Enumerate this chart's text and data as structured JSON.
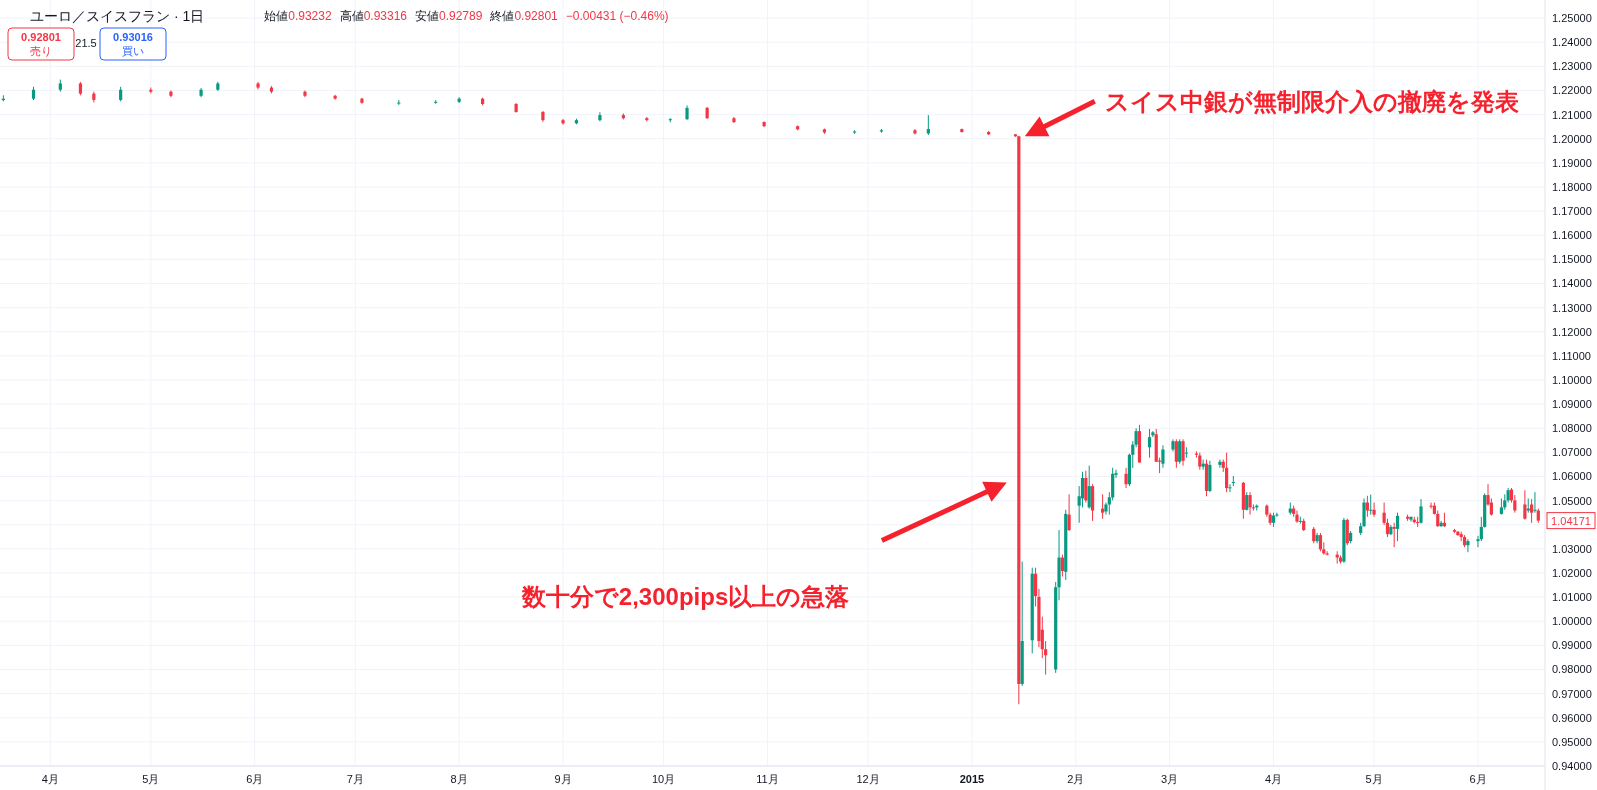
{
  "chart_data": {
    "type": "candlestick",
    "title": "ユーロ／スイスフラン · 1日",
    "grid": true,
    "xlim": [
      "2014-03-17",
      "2015-06-21"
    ],
    "xticks": [
      {
        "value": "2014-04-01",
        "label": "4月"
      },
      {
        "value": "2014-05-01",
        "label": "5月"
      },
      {
        "value": "2014-06-01",
        "label": "6月"
      },
      {
        "value": "2014-07-01",
        "label": "7月"
      },
      {
        "value": "2014-08-01",
        "label": "8月"
      },
      {
        "value": "2014-09-01",
        "label": "9月"
      },
      {
        "value": "2014-10-01",
        "label": "10月"
      },
      {
        "value": "2014-11-01",
        "label": "11月"
      },
      {
        "value": "2014-12-01",
        "label": "12月"
      },
      {
        "value": "2015-01-01",
        "label": "2015"
      },
      {
        "value": "2015-02-01",
        "label": "2月"
      },
      {
        "value": "2015-03-01",
        "label": "3月"
      },
      {
        "value": "2015-04-01",
        "label": "4月"
      },
      {
        "value": "2015-05-01",
        "label": "5月"
      },
      {
        "value": "2015-06-01",
        "label": "6月"
      }
    ],
    "ylim": [
      0.94,
      1.2575
    ],
    "yticks": [
      {
        "value": 0.94,
        "label": "0.94000"
      },
      {
        "value": 0.95,
        "label": "0.95000"
      },
      {
        "value": 0.96,
        "label": "0.96000"
      },
      {
        "value": 0.97,
        "label": "0.97000"
      },
      {
        "value": 0.98,
        "label": "0.98000"
      },
      {
        "value": 0.99,
        "label": "0.99000"
      },
      {
        "value": 1.0,
        "label": "1.00000"
      },
      {
        "value": 1.01,
        "label": "1.01000"
      },
      {
        "value": 1.02,
        "label": "1.02000"
      },
      {
        "value": 1.03,
        "label": "1.03000"
      },
      {
        "value": 1.04,
        "label": null
      },
      {
        "value": 1.05,
        "label": "1.05000"
      },
      {
        "value": 1.06,
        "label": "1.06000"
      },
      {
        "value": 1.07,
        "label": "1.07000"
      },
      {
        "value": 1.08,
        "label": "1.08000"
      },
      {
        "value": 1.09,
        "label": "1.09000"
      },
      {
        "value": 1.1,
        "label": "1.10000"
      },
      {
        "value": 1.11,
        "label": "1.11000"
      },
      {
        "value": 1.12,
        "label": "1.12000"
      },
      {
        "value": 1.13,
        "label": "1.13000"
      },
      {
        "value": 1.14,
        "label": "1.14000"
      },
      {
        "value": 1.15,
        "label": "1.15000"
      },
      {
        "value": 1.16,
        "label": "1.16000"
      },
      {
        "value": 1.17,
        "label": "1.17000"
      },
      {
        "value": 1.18,
        "label": "1.18000"
      },
      {
        "value": 1.19,
        "label": "1.19000"
      },
      {
        "value": 1.2,
        "label": "1.20000"
      },
      {
        "value": 1.21,
        "label": "1.21000"
      },
      {
        "value": 1.22,
        "label": "1.22000"
      },
      {
        "value": 1.23,
        "label": "1.23000"
      },
      {
        "value": 1.24,
        "label": "1.24000"
      },
      {
        "value": 1.25,
        "label": "1.25000"
      }
    ],
    "x": [
      "2014-03-18",
      "2014-03-27",
      "2014-04-04",
      "2014-04-10",
      "2014-04-14",
      "2014-04-22",
      "2014-05-01",
      "2014-05-07",
      "2014-05-16",
      "2014-05-21",
      "2014-06-02",
      "2014-06-06",
      "2014-06-16",
      "2014-06-25",
      "2014-07-03",
      "2014-07-14",
      "2014-07-25",
      "2014-08-01",
      "2014-08-08",
      "2014-08-18",
      "2014-08-26",
      "2014-09-01",
      "2014-09-05",
      "2014-09-12",
      "2014-09-19",
      "2014-09-26",
      "2014-10-03",
      "2014-10-08",
      "2014-10-14",
      "2014-10-22",
      "2014-10-31",
      "2014-11-10",
      "2014-11-18",
      "2014-11-27",
      "2014-12-05",
      "2014-12-15",
      "2014-12-19",
      "2014-12-29",
      "2015-01-06",
      "2015-01-14",
      "2015-01-15",
      "2015-01-16",
      "2015-01-19",
      "2015-01-20",
      "2015-01-21",
      "2015-01-22",
      "2015-01-23",
      "2015-01-26",
      "2015-01-27",
      "2015-01-28",
      "2015-01-29",
      "2015-01-30",
      "2015-02-02",
      "2015-02-03",
      "2015-02-04",
      "2015-02-05",
      "2015-02-06",
      "2015-02-09",
      "2015-02-10",
      "2015-02-11",
      "2015-02-12",
      "2015-02-13",
      "2015-02-16",
      "2015-02-17",
      "2015-02-18",
      "2015-02-19",
      "2015-02-20",
      "2015-02-23",
      "2015-02-24",
      "2015-02-25",
      "2015-02-26",
      "2015-02-27",
      "2015-03-02",
      "2015-03-03",
      "2015-03-04",
      "2015-03-05",
      "2015-03-06",
      "2015-03-09",
      "2015-03-10",
      "2015-03-11",
      "2015-03-12",
      "2015-03-13",
      "2015-03-16",
      "2015-03-17",
      "2015-03-18",
      "2015-03-19",
      "2015-03-20",
      "2015-03-23",
      "2015-03-24",
      "2015-03-25",
      "2015-03-26",
      "2015-03-27",
      "2015-03-30",
      "2015-03-31",
      "2015-04-01",
      "2015-04-02",
      "2015-04-06",
      "2015-04-07",
      "2015-04-08",
      "2015-04-09",
      "2015-04-10",
      "2015-04-13",
      "2015-04-14",
      "2015-04-15",
      "2015-04-16",
      "2015-04-17",
      "2015-04-20",
      "2015-04-21",
      "2015-04-22",
      "2015-04-23",
      "2015-04-24",
      "2015-04-27",
      "2015-04-28",
      "2015-04-29",
      "2015-04-30",
      "2015-05-01",
      "2015-05-04",
      "2015-05-05",
      "2015-05-06",
      "2015-05-07",
      "2015-05-08",
      "2015-05-11",
      "2015-05-12",
      "2015-05-13",
      "2015-05-14",
      "2015-05-15",
      "2015-05-18",
      "2015-05-19",
      "2015-05-20",
      "2015-05-21",
      "2015-05-22",
      "2015-05-25",
      "2015-05-26",
      "2015-05-27",
      "2015-05-28",
      "2015-05-29",
      "2015-06-01",
      "2015-06-02",
      "2015-06-03",
      "2015-06-04",
      "2015-06-05",
      "2015-06-08",
      "2015-06-09",
      "2015-06-10",
      "2015-06-11",
      "2015-06-12",
      "2015-06-15",
      "2015-06-16",
      "2015-06-17",
      "2015-06-18",
      "2015-06-19"
    ],
    "ohlc": [
      [
        1.216,
        1.218,
        1.2155,
        1.2166
      ],
      [
        1.2166,
        1.2215,
        1.216,
        1.2203
      ],
      [
        1.2203,
        1.2245,
        1.2195,
        1.2229
      ],
      [
        1.2229,
        1.2235,
        1.218,
        1.2187
      ],
      [
        1.2187,
        1.2195,
        1.215,
        1.2161
      ],
      [
        1.2161,
        1.2215,
        1.2155,
        1.2203
      ],
      [
        1.2203,
        1.2212,
        1.2188,
        1.2195
      ],
      [
        1.2195,
        1.22,
        1.2172,
        1.2178
      ],
      [
        1.2178,
        1.221,
        1.2172,
        1.2203
      ],
      [
        1.2203,
        1.2236,
        1.2198,
        1.2229
      ],
      [
        1.2229,
        1.2235,
        1.2205,
        1.2212
      ],
      [
        1.2212,
        1.2218,
        1.2188,
        1.2195
      ],
      [
        1.2195,
        1.22,
        1.2172,
        1.2178
      ],
      [
        1.2178,
        1.2182,
        1.2162,
        1.2166
      ],
      [
        1.2166,
        1.217,
        1.2145,
        1.2149
      ],
      [
        1.2149,
        1.216,
        1.214,
        1.215
      ],
      [
        1.215,
        1.216,
        1.2145,
        1.2153
      ],
      [
        1.2153,
        1.2172,
        1.2148,
        1.2166
      ],
      [
        1.2166,
        1.217,
        1.2138,
        1.2144
      ],
      [
        1.2144,
        1.2148,
        1.2108,
        1.2111
      ],
      [
        1.2111,
        1.2115,
        1.207,
        1.2077
      ],
      [
        1.2077,
        1.2082,
        1.2058,
        1.2064
      ],
      [
        1.2064,
        1.2083,
        1.206,
        1.2077
      ],
      [
        1.2077,
        1.211,
        1.2072,
        1.2098
      ],
      [
        1.2098,
        1.2105,
        1.208,
        1.2085
      ],
      [
        1.2085,
        1.209,
        1.2072,
        1.2077
      ],
      [
        1.2077,
        1.2085,
        1.2068,
        1.2081
      ],
      [
        1.2081,
        1.2138,
        1.2078,
        1.2128
      ],
      [
        1.2128,
        1.2132,
        1.2082,
        1.2085
      ],
      [
        1.2085,
        1.209,
        1.2065,
        1.2069
      ],
      [
        1.2069,
        1.2072,
        1.2048,
        1.2052
      ],
      [
        1.2052,
        1.2055,
        1.2035,
        1.2039
      ],
      [
        1.2039,
        1.2042,
        1.202,
        1.2026
      ],
      [
        1.2026,
        1.2035,
        1.202,
        1.203
      ],
      [
        1.203,
        1.204,
        1.2025,
        1.2035
      ],
      [
        1.2035,
        1.204,
        1.2018,
        1.2022
      ],
      [
        1.2022,
        1.2098,
        1.2015,
        1.204
      ],
      [
        1.204,
        1.2042,
        1.2025,
        1.2028
      ],
      [
        1.2028,
        1.2032,
        1.2015,
        1.2018
      ],
      [
        1.2018,
        1.202,
        1.2008,
        1.201
      ],
      [
        1.201,
        1.2012,
        0.9656,
        0.974
      ],
      [
        0.974,
        1.0247,
        0.9732,
        0.9918
      ],
      [
        0.9921,
        1.0222,
        0.9867,
        1.0197
      ],
      [
        1.0197,
        1.0222,
        1.0061,
        1.0104
      ],
      [
        1.0101,
        1.0134,
        0.9892,
        0.9918
      ],
      [
        0.9965,
        1.0019,
        0.9847,
        0.9884
      ],
      [
        0.9884,
        0.9918,
        0.9779,
        0.9859
      ],
      [
        0.98,
        1.0163,
        0.9786,
        1.0141
      ],
      [
        1.0141,
        1.0378,
        1.0087,
        1.0264
      ],
      [
        1.0264,
        1.0276,
        1.0185,
        1.0208
      ],
      [
        1.0205,
        1.0462,
        1.0171,
        1.0445
      ],
      [
        1.0442,
        1.0526,
        1.0374,
        1.0378
      ],
      [
        1.0479,
        1.056,
        1.0408,
        1.0518
      ],
      [
        1.0509,
        1.0619,
        1.0472,
        1.0594
      ],
      [
        1.0594,
        1.0624,
        1.0492,
        1.0501
      ],
      [
        1.0472,
        1.0645,
        1.0467,
        1.056
      ],
      [
        1.056,
        1.0568,
        1.0416,
        1.0459
      ],
      [
        1.0467,
        1.0526,
        1.0425,
        1.045
      ],
      [
        1.0455,
        1.0492,
        1.0442,
        1.0484
      ],
      [
        1.0484,
        1.0535,
        1.0442,
        1.0514
      ],
      [
        1.0513,
        1.0636,
        1.0501,
        1.0611
      ],
      [
        1.0607,
        1.0628,
        1.0594,
        1.0614
      ],
      [
        1.0611,
        1.0636,
        1.0552,
        1.0568
      ],
      [
        1.0568,
        1.0695,
        1.056,
        1.069
      ],
      [
        1.069,
        1.0746,
        1.0636,
        1.0732
      ],
      [
        1.0732,
        1.08,
        1.0721,
        1.0788
      ],
      [
        1.0788,
        1.0814,
        1.0658,
        1.0658
      ],
      [
        1.0721,
        1.0797,
        1.0678,
        1.0763
      ],
      [
        1.0771,
        1.0788,
        1.0763,
        1.0783
      ],
      [
        1.0775,
        1.0797,
        1.0661,
        1.0661
      ],
      [
        1.0666,
        1.0678,
        1.0614,
        1.0661
      ],
      [
        1.0653,
        1.0729,
        1.0636,
        1.0712
      ],
      [
        1.0712,
        1.0754,
        1.0704,
        1.0746
      ],
      [
        1.0746,
        1.0754,
        1.0636,
        1.0661
      ],
      [
        1.0661,
        1.0754,
        1.0653,
        1.0746
      ],
      [
        1.0746,
        1.0754,
        1.0645,
        1.0665
      ],
      [
        1.0695,
        1.0721,
        1.0678,
        1.0699
      ],
      [
        1.0695,
        1.0704,
        1.0678,
        1.069
      ],
      [
        1.0687,
        1.0699,
        1.0628,
        1.0641
      ],
      [
        1.0641,
        1.067,
        1.0628,
        1.0653
      ],
      [
        1.0653,
        1.067,
        1.0518,
        1.054
      ],
      [
        1.054,
        1.0665,
        1.0535,
        1.0648
      ],
      [
        1.0648,
        1.067,
        1.0636,
        1.0661
      ],
      [
        1.0661,
        1.067,
        1.0619,
        1.0636
      ],
      [
        1.0636,
        1.0699,
        1.0535,
        1.0552
      ],
      [
        1.0552,
        1.0568,
        1.0535,
        1.0555
      ],
      [
        1.0574,
        1.0602,
        1.056,
        1.0577
      ],
      [
        1.0574,
        1.0577,
        1.0425,
        1.0462
      ],
      [
        1.0462,
        1.0535,
        1.0459,
        1.0523
      ],
      [
        1.0523,
        1.0535,
        1.0442,
        1.0472
      ],
      [
        1.0472,
        1.0484,
        1.0459,
        1.047
      ],
      [
        1.0472,
        1.0484,
        1.0459,
        1.0479
      ],
      [
        1.0479,
        1.0484,
        1.0433,
        1.0442
      ],
      [
        1.0442,
        1.045,
        1.0399,
        1.0408
      ],
      [
        1.0408,
        1.045,
        1.0391,
        1.0438
      ],
      [
        1.0438,
        1.045,
        1.0433,
        1.0442
      ],
      [
        1.045,
        1.0492,
        1.0442,
        1.0467
      ],
      [
        1.0467,
        1.0479,
        1.0433,
        1.0445
      ],
      [
        1.0442,
        1.0459,
        1.0408,
        1.0413
      ],
      [
        1.0413,
        1.0433,
        1.0405,
        1.0416
      ],
      [
        1.0416,
        1.0425,
        1.0374,
        1.0378
      ],
      [
        1.0383,
        1.0391,
        1.0323,
        1.0332
      ],
      [
        1.0332,
        1.0366,
        1.0323,
        1.0357
      ],
      [
        1.0357,
        1.0366,
        1.029,
        1.0298
      ],
      [
        1.0298,
        1.0327,
        1.0276,
        1.0281
      ],
      [
        1.0281,
        1.029,
        1.0273,
        1.0276
      ],
      [
        1.0276,
        1.029,
        1.0239,
        1.0264
      ],
      [
        1.0264,
        1.0273,
        1.0239,
        1.0247
      ],
      [
        1.0247,
        1.0428,
        1.0242,
        1.042
      ],
      [
        1.042,
        1.0425,
        1.0315,
        1.0323
      ],
      [
        1.0332,
        1.0374,
        1.0323,
        1.0366
      ],
      [
        1.0366,
        1.0408,
        1.0357,
        1.0394
      ],
      [
        1.0394,
        1.0509,
        1.0391,
        1.0492
      ],
      [
        1.0492,
        1.052,
        1.0433,
        1.0459
      ],
      [
        1.0459,
        1.0525,
        1.0442,
        1.0462
      ],
      [
        1.0462,
        1.0492,
        1.0433,
        1.0442
      ],
      [
        1.045,
        1.0492,
        1.0399,
        1.0408
      ],
      [
        1.0408,
        1.0425,
        1.0349,
        1.0361
      ],
      [
        1.0361,
        1.0399,
        1.0357,
        1.0391
      ],
      [
        1.0391,
        1.0408,
        1.0307,
        1.0383
      ],
      [
        1.0383,
        1.045,
        1.0332,
        1.0437
      ],
      [
        1.0433,
        1.0442,
        1.0416,
        1.0425
      ],
      [
        1.0421,
        1.0433,
        1.0413,
        1.0433
      ],
      [
        1.0421,
        1.0433,
        1.0405,
        1.0411
      ],
      [
        1.0411,
        1.0433,
        1.0391,
        1.0408
      ],
      [
        1.0408,
        1.0506,
        1.0405,
        1.0476
      ],
      [
        1.0479,
        1.0492,
        1.0467,
        1.0476
      ],
      [
        1.0479,
        1.0492,
        1.0442,
        1.0445
      ],
      [
        1.0445,
        1.0459,
        1.0391,
        1.0394
      ],
      [
        1.0394,
        1.0416,
        1.0391,
        1.0408
      ],
      [
        1.0408,
        1.045,
        1.0391,
        1.0394
      ],
      [
        1.0378,
        1.0383,
        1.0366,
        1.0371
      ],
      [
        1.0371,
        1.0374,
        1.0354,
        1.0357
      ],
      [
        1.0361,
        1.0371,
        1.0332,
        1.0349
      ],
      [
        1.0349,
        1.0357,
        1.0307,
        1.0315
      ],
      [
        1.0315,
        1.034,
        1.0286,
        1.0332
      ],
      [
        1.0332,
        1.0354,
        1.0307,
        1.034
      ],
      [
        1.034,
        1.0433,
        1.0332,
        1.0391
      ],
      [
        1.0391,
        1.053,
        1.0388,
        1.0523
      ],
      [
        1.0523,
        1.0568,
        1.0479,
        1.0484
      ],
      [
        1.0492,
        1.0509,
        1.0438,
        1.0442
      ],
      [
        1.0445,
        1.0509,
        1.0442,
        1.0472
      ],
      [
        1.0472,
        1.0526,
        1.0462,
        1.0501
      ],
      [
        1.0501,
        1.0552,
        1.0492,
        1.0543
      ],
      [
        1.0546,
        1.0552,
        1.0492,
        1.0501
      ],
      [
        1.0501,
        1.0523,
        1.045,
        1.0459
      ],
      [
        1.0484,
        1.0543,
        1.0421,
        1.0425
      ],
      [
        1.0459,
        1.0509,
        1.045,
        1.0467
      ],
      [
        1.0484,
        1.0506,
        1.0408,
        1.045
      ],
      [
        1.0459,
        1.0535,
        1.045,
        1.0462
      ],
      [
        1.0459,
        1.0467,
        1.0408,
        1.04171
      ]
    ],
    "annotations": [
      "始値0.93232",
      "高値0.93316",
      "安値0.92789",
      "終値0.92801",
      "−0.00431 (−0.46%)",
      "0.92801 売り",
      "21.5",
      "0.93016 買い",
      "スイス中銀が無制限介入の撤廃を発表",
      "数十分で2,300pips以上の急落",
      {
        "text": "1.04171",
        "x": "2015-06-19",
        "y": 1.04171
      }
    ]
  }
}
